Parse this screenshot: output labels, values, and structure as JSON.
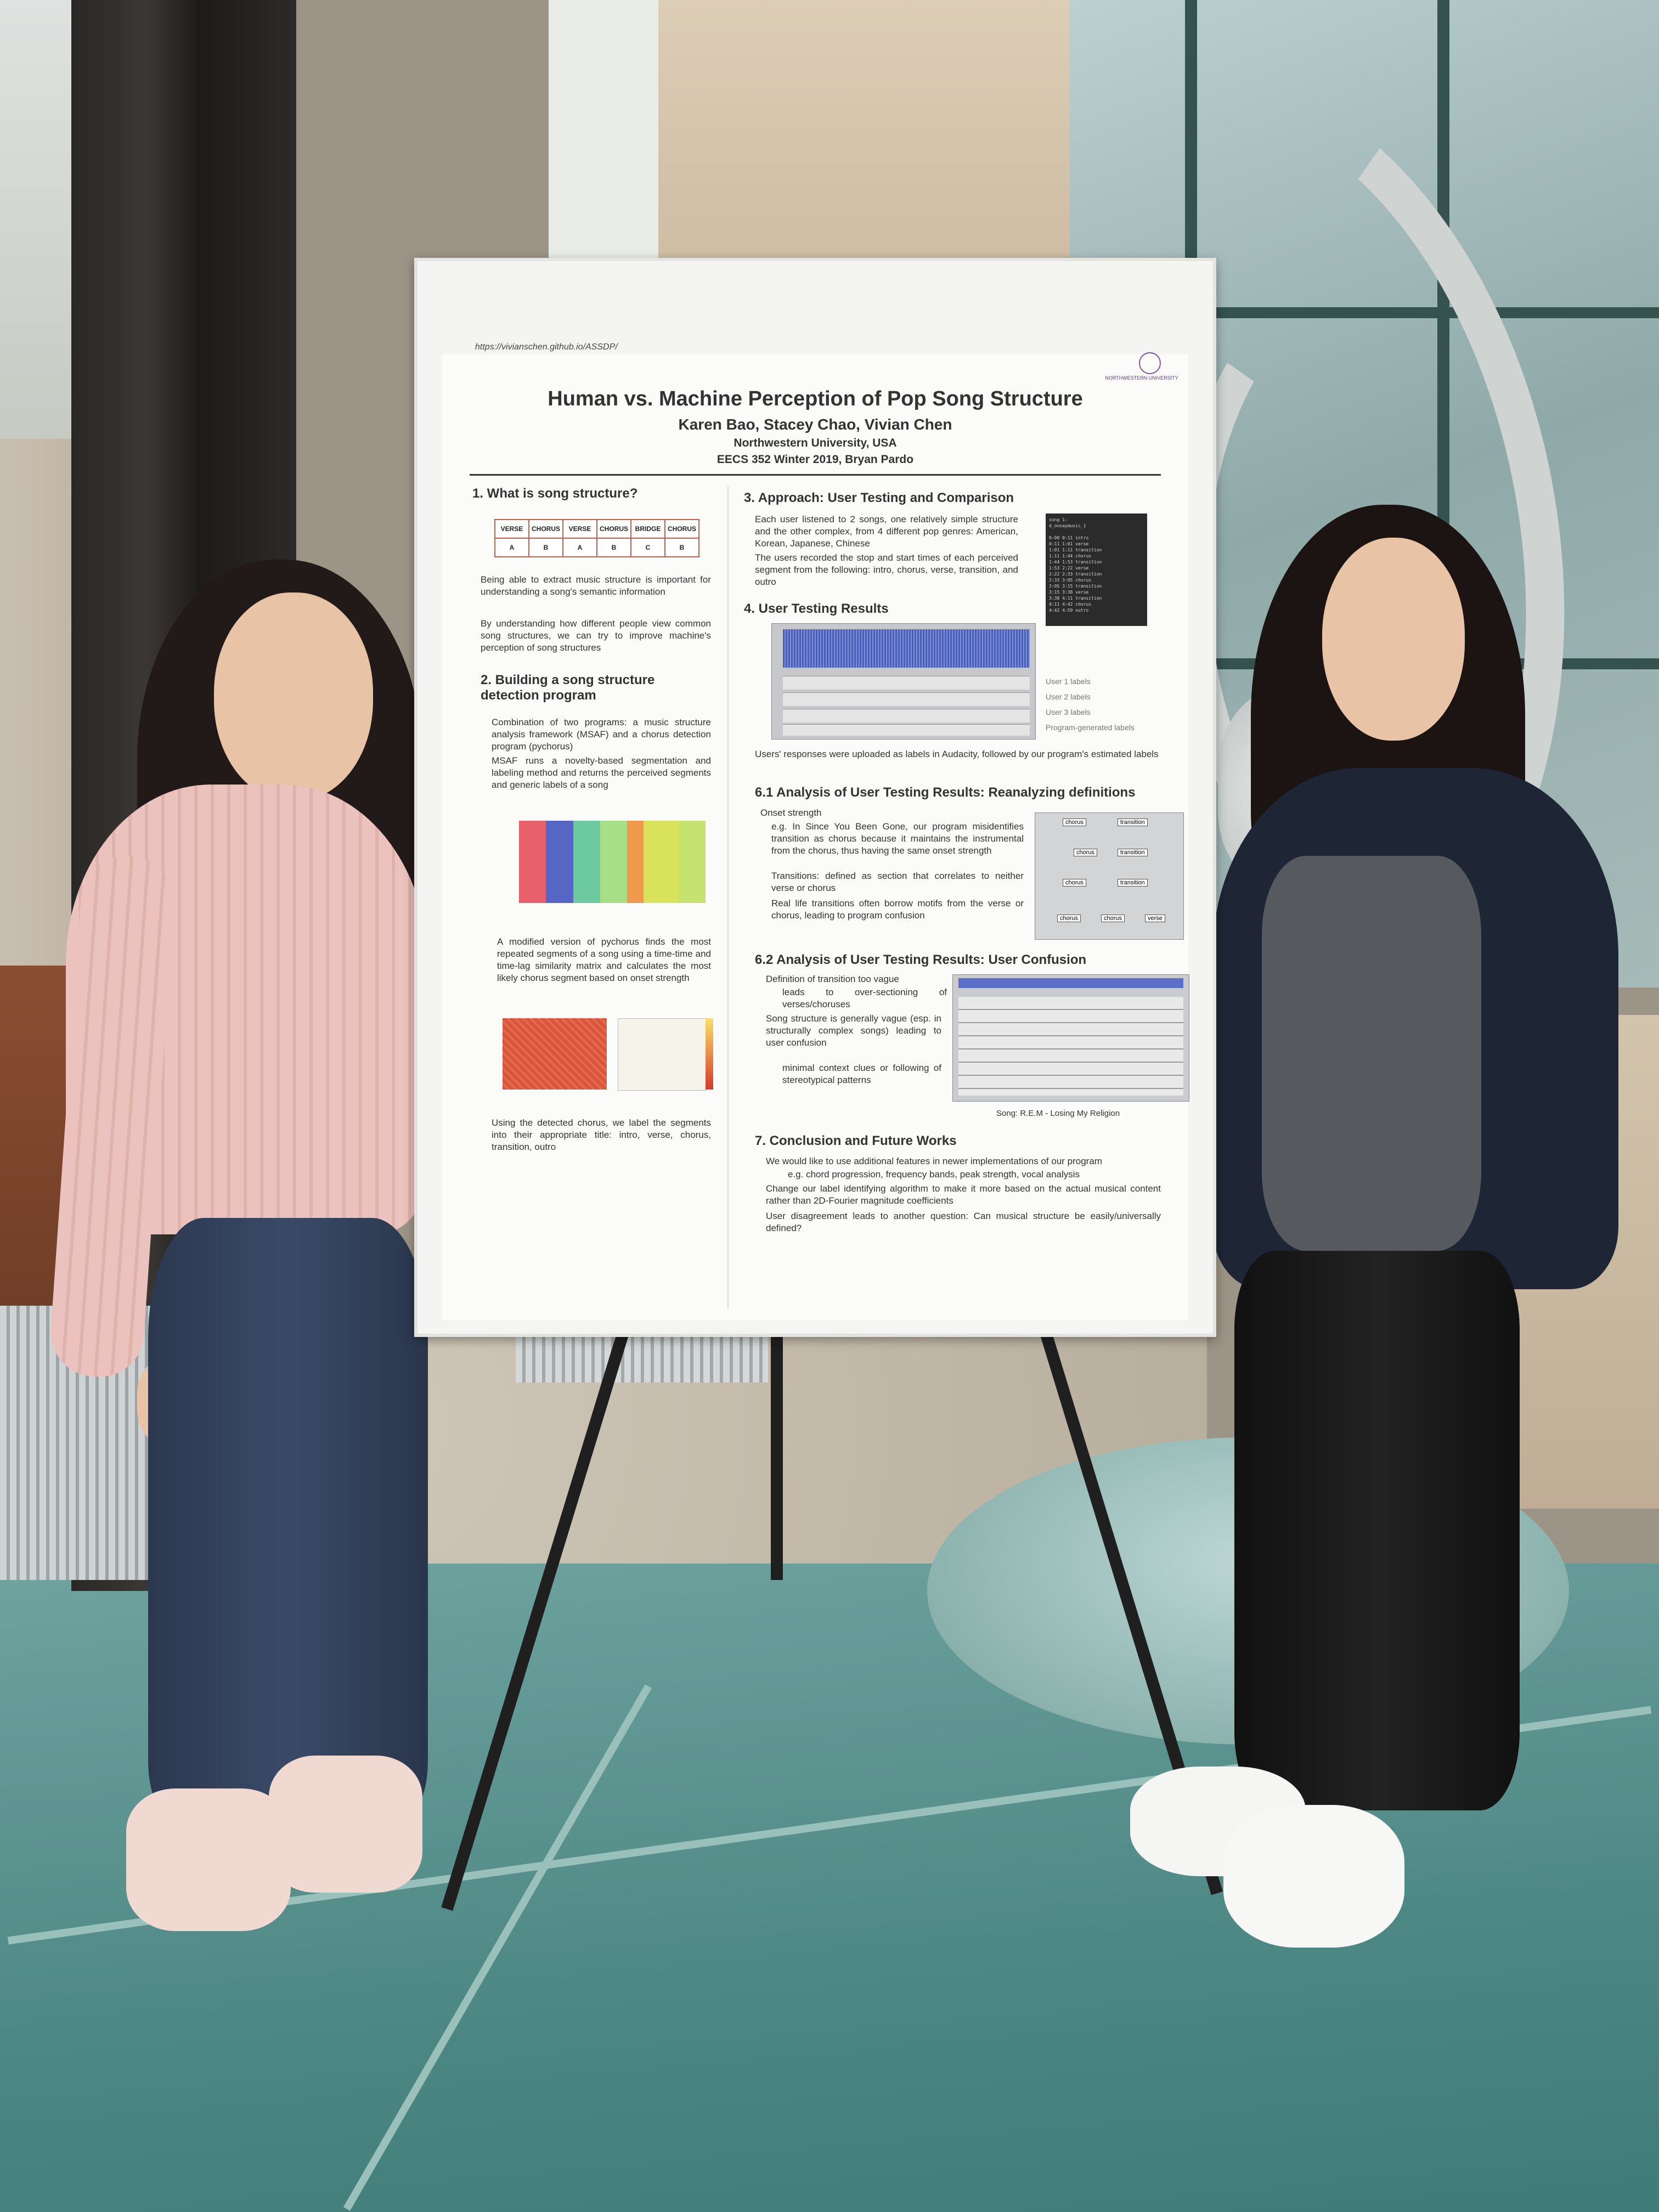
{
  "poster": {
    "url": "https://vivianschen.github.io/ASSDP/",
    "logo_text": "NORTHWESTERN UNIVERSITY",
    "title": "Human vs. Machine Perception of Pop Song Structure",
    "authors": "Karen Bao, Stacey Chao, Vivian Chen",
    "affiliation": "Northwestern University, USA",
    "course": "EECS 352 Winter 2019, Bryan Pardo",
    "section1": {
      "heading": "1. What is song structure?",
      "table_top": [
        "VERSE",
        "CHORUS",
        "VERSE",
        "CHORUS",
        "BRIDGE",
        "CHORUS"
      ],
      "table_bottom": [
        "A",
        "B",
        "A",
        "B",
        "C",
        "B"
      ],
      "bullets": [
        "Being able to extract music structure is important for understanding a song's semantic information",
        "By understanding how different people view common song structures, we can try to improve machine's perception of song structures"
      ]
    },
    "section2": {
      "heading": "2. Building a song structure detection program",
      "bullets": [
        "Combination of two programs: a music structure analysis framework (MSAF) and a chorus detection program (pychorus)",
        "MSAF runs a novelty-based segmentation and labeling method and returns the perceived segments and generic labels of a song",
        "A modified version of pychorus finds the most repeated segments of a song using a time-time and time-lag similarity matrix and calculates the most likely chorus segment based on onset strength",
        "Using the detected chorus, we label the segments into their appropriate title: intro, verse, chorus, transition, outro"
      ]
    },
    "section3": {
      "heading": "3. Approach: User Testing and Comparison",
      "bullets": [
        "Each user listened to 2 songs, one relatively simple structure and the other complex, from 4 different pop genres: American, Korean, Japanese, Chinese",
        "The users recorded the stop and start times of each perceived segment from the following: intro, chorus, verse, transition, and outro"
      ],
      "console_lines": [
        "song 1:",
        "d_onsaymusic_1",
        "",
        "0:00    0:11   intro",
        "0:11    1:01   verse",
        "1:01    1:11   transition",
        "1:11    1:44   chorus",
        "1:44    1:53   transition",
        "1:53    2:22   verse",
        "2:22    2:33   transition",
        "2:33    3:05   chorus",
        "3:05    3:15   transition",
        "3:15    3:38   verse",
        "3:38    4:11   transition",
        "4:11    4:42   chorus",
        "4:42    4:59   outro"
      ]
    },
    "section4": {
      "heading": "4. User Testing Results",
      "legend": [
        "User 1 labels",
        "User 2 labels",
        "User 3 labels",
        "Program-generated labels"
      ],
      "bullets": [
        "Users' responses were uploaded as labels in Audacity, followed by our program's estimated labels"
      ]
    },
    "section61": {
      "heading": "6.1 Analysis of User Testing Results: Reanalyzing definitions",
      "bullets": [
        "Onset strength",
        "e.g. In Since You Been Gone, our program misidentifies transition as chorus because it maintains the instrumental from the chorus, thus having the same onset strength",
        "Transitions: defined as section that correlates to neither verse or chorus",
        "Real life transitions often borrow motifs from the verse or chorus, leading to program confusion"
      ],
      "label_tags": [
        "chorus",
        "transition",
        "chorus",
        "transition",
        "chorus",
        "transition",
        "chorus",
        "chorus",
        "verse"
      ]
    },
    "section62": {
      "heading": "6.2 Analysis of User Testing Results: User Confusion",
      "bullets": [
        "Definition of transition too vague",
        "leads to over-sectioning of verses/choruses",
        "Song structure is generally vague (esp. in structurally complex songs) leading to user confusion",
        "minimal context clues or following of stereotypical patterns"
      ],
      "caption": "Song: R.E.M - Losing My Religion"
    },
    "section7": {
      "heading": "7. Conclusion and Future Works",
      "bullets": [
        "We would like to use additional features in newer implementations of our program",
        "e.g. chord progression, frequency bands, peak strength, vocal analysis",
        "Change our label identifying algorithm to make it more based on the actual musical content rather than 2D-Fourier magnitude coefficients",
        "User disagreement leads to another question: Can musical structure be easily/universally defined?"
      ]
    }
  },
  "colors": {
    "segment_bar": [
      "#e8616a",
      "#5566c4",
      "#6cc9a0",
      "#a6df86",
      "#ef9a4c",
      "#d8e25a",
      "#c5e36e"
    ],
    "table_border": "#c06050",
    "sweater": "#e8bdb8",
    "jeans": "#2e3a4e",
    "cardigan": "#1d2433",
    "glass_floor": "#5e9893"
  }
}
